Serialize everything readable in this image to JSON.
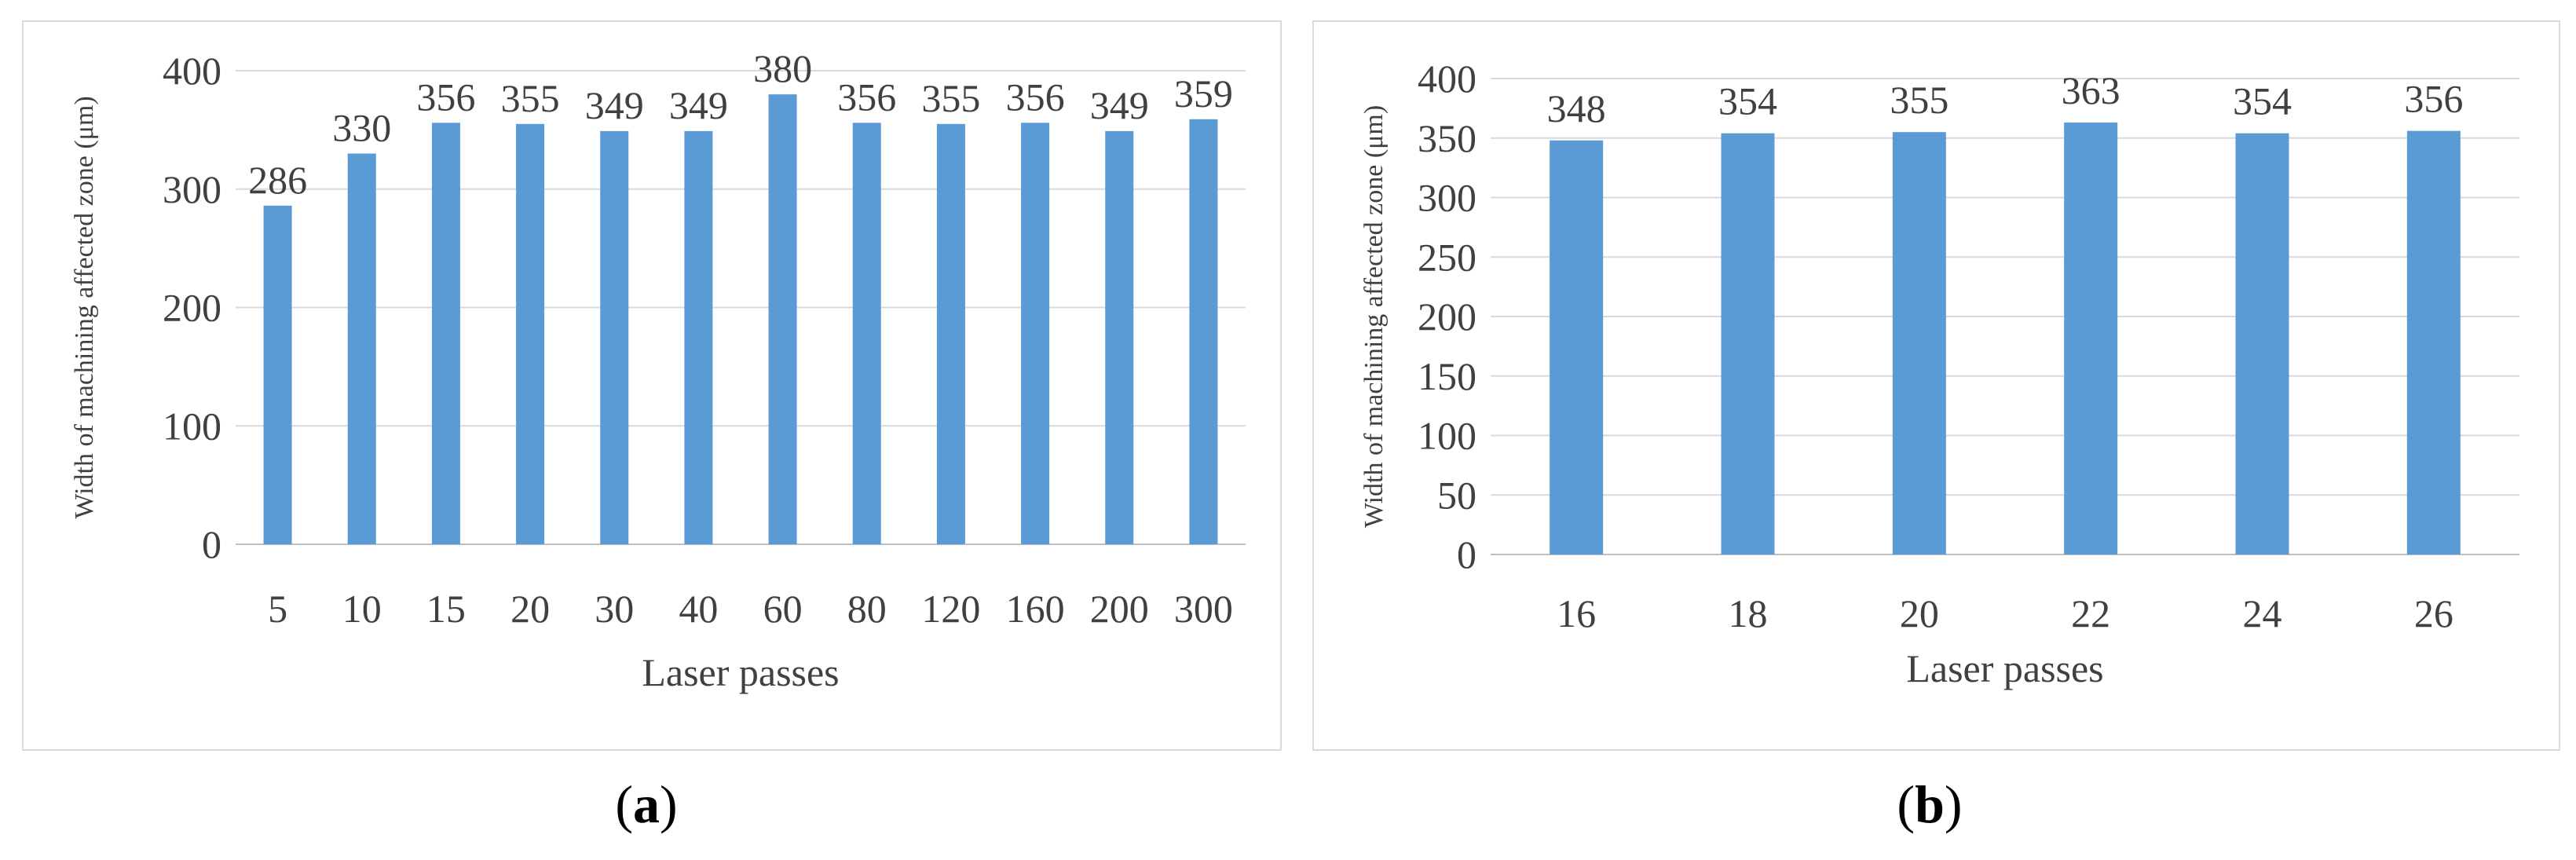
{
  "chart_data": [
    {
      "type": "bar",
      "panel_label": "a",
      "categories": [
        "5",
        "10",
        "15",
        "20",
        "30",
        "40",
        "60",
        "80",
        "120",
        "160",
        "200",
        "300"
      ],
      "values": [
        286,
        330,
        356,
        355,
        349,
        349,
        380,
        356,
        355,
        356,
        349,
        359
      ],
      "data_labels": [
        "286",
        "330",
        "356",
        "355",
        "349",
        "349",
        "380",
        "356",
        "355",
        "356",
        "349",
        "359"
      ],
      "xlabel": "Laser passes",
      "ylabel": "Width of machining affected zone (μm)",
      "ylim": [
        0,
        400
      ],
      "yticks": [
        0,
        100,
        200,
        300,
        400
      ],
      "bar_color": "#5b9bd5",
      "grid": true,
      "legend": "none"
    },
    {
      "type": "bar",
      "panel_label": "b",
      "categories": [
        "16",
        "18",
        "20",
        "22",
        "24",
        "26"
      ],
      "values": [
        348,
        354,
        355,
        363,
        354,
        356
      ],
      "data_labels": [
        "348",
        "354",
        "355",
        "363",
        "354",
        "356"
      ],
      "xlabel": "Laser passes",
      "ylabel": "Width of machining affected zone (μm)",
      "ylim": [
        0,
        400
      ],
      "yticks": [
        0,
        50,
        100,
        150,
        200,
        250,
        300,
        350,
        400
      ],
      "bar_color": "#5b9bd5",
      "grid": true,
      "legend": "none"
    }
  ],
  "captions": {
    "a": {
      "open": "(",
      "letter": "a",
      "close": ")"
    },
    "b": {
      "open": "(",
      "letter": "b",
      "close": ")"
    }
  }
}
